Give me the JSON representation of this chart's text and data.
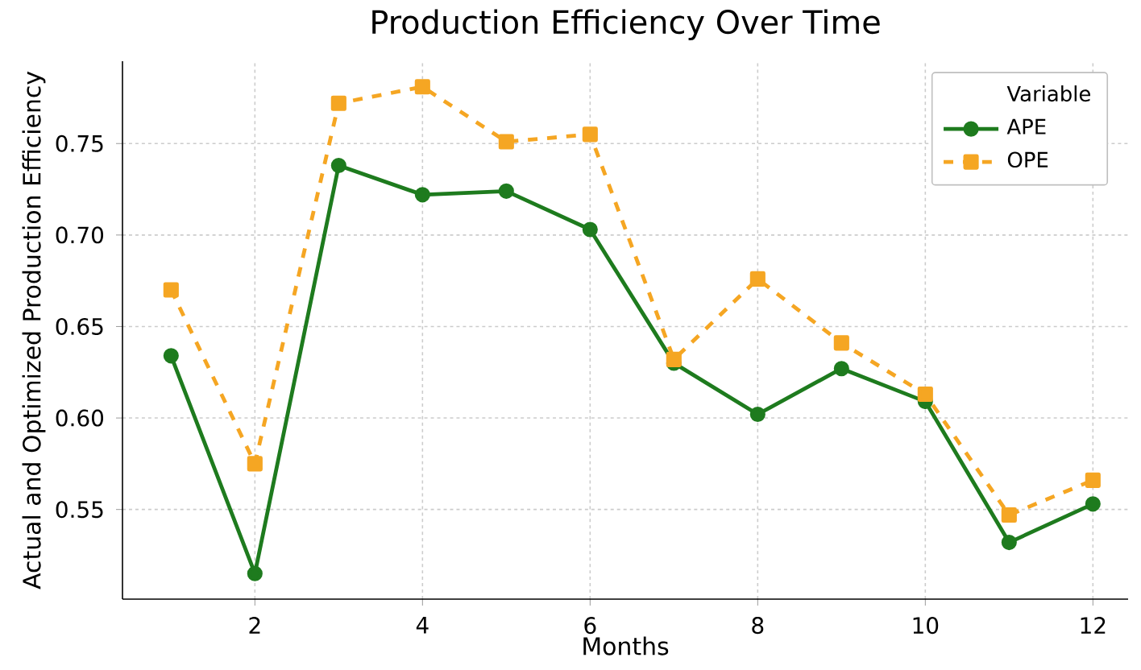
{
  "chart_data": {
    "type": "line",
    "title": "Production Efficiency Over Time",
    "xlabel": "Months",
    "ylabel": "Actual and Optimized Production Efficiency",
    "legend_title": "Variable",
    "x": [
      1,
      2,
      3,
      4,
      5,
      6,
      7,
      8,
      9,
      10,
      11,
      12
    ],
    "series": [
      {
        "name": "APE",
        "color": "#1e7b1e",
        "marker": "circle",
        "line_style": "solid",
        "values": [
          0.634,
          0.515,
          0.738,
          0.722,
          0.724,
          0.703,
          0.63,
          0.602,
          0.627,
          0.609,
          0.532,
          0.553
        ]
      },
      {
        "name": "OPE",
        "color": "#f5a623",
        "marker": "square",
        "line_style": "dashed",
        "values": [
          0.67,
          0.575,
          0.772,
          0.781,
          0.751,
          0.755,
          0.632,
          0.676,
          0.641,
          0.613,
          0.547,
          0.566
        ]
      }
    ],
    "xlim": [
      0.42,
      12.42
    ],
    "ylim": [
      0.501,
      0.795
    ],
    "xticks": [
      2,
      4,
      6,
      8,
      10,
      12
    ],
    "yticks": [
      0.55,
      {
        "value": 0.6,
        "label": "0.60"
      },
      0.65,
      {
        "value": 0.7,
        "label": "0.70"
      },
      0.75
    ],
    "grid": true,
    "legend": "top right"
  }
}
